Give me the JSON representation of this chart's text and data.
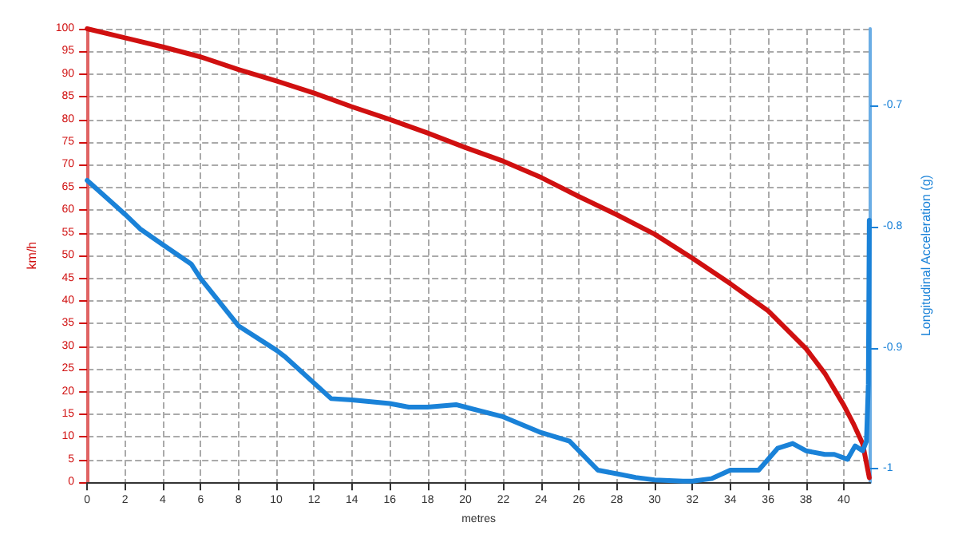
{
  "chart_data": {
    "type": "line",
    "xlabel": "metres",
    "ylabel": "km/h",
    "y2label": "Longitudinal Acceleration (g)",
    "xlim": [
      0,
      41.4
    ],
    "xticks": [
      0,
      2,
      4,
      6,
      8,
      10,
      12,
      14,
      16,
      18,
      20,
      22,
      24,
      26,
      28,
      30,
      32,
      34,
      36,
      38,
      40
    ],
    "ylim": [
      0,
      100
    ],
    "yticks": [
      0,
      5,
      10,
      15,
      20,
      25,
      30,
      35,
      40,
      45,
      50,
      55,
      60,
      65,
      70,
      75,
      80,
      85,
      90,
      95,
      100
    ],
    "y2lim": [
      -1.011,
      -0.637
    ],
    "y2ticks": [
      -1,
      -0.9,
      -0.8,
      -0.7
    ],
    "grid": true,
    "marker": "none",
    "line_style": "solid",
    "series": [
      {
        "color": "#d01010",
        "x": [
          0,
          2,
          4,
          6,
          8,
          10,
          12,
          14,
          16,
          18,
          20,
          22,
          24,
          26,
          28,
          30,
          32,
          34,
          36,
          38,
          39,
          40,
          40.5,
          41,
          41.35
        ],
        "values": [
          100,
          98,
          96,
          93.8,
          91,
          88.5,
          85.8,
          82.8,
          80,
          77,
          73.8,
          70.8,
          67.2,
          63,
          59,
          54.7,
          49.4,
          43.8,
          37.8,
          29.5,
          24,
          17,
          13,
          8.5,
          1
        ]
      },
      {
        "color": "#1a82d8",
        "axis": "y2",
        "x": [
          0,
          2,
          2.8,
          4,
          5.5,
          6,
          8,
          10,
          10.5,
          12.9,
          14,
          16,
          17,
          18,
          19.5,
          20,
          22,
          24,
          25.5,
          27,
          28,
          29,
          30,
          31.5,
          32,
          33,
          34,
          35.5,
          36.5,
          37.3,
          38,
          39,
          39.5,
          40.2,
          40.6,
          41,
          41.2,
          41.3,
          41.35
        ],
        "values": [
          -0.762,
          -0.79,
          -0.802,
          -0.815,
          -0.831,
          -0.843,
          -0.882,
          -0.902,
          -0.908,
          -0.942,
          -0.943,
          -0.946,
          -0.949,
          -0.949,
          -0.947,
          -0.949,
          -0.957,
          -0.97,
          -0.977,
          -1.001,
          -1.004,
          -1.007,
          -1.009,
          -1.01,
          -1.01,
          -1.008,
          -1.001,
          -1.001,
          -0.983,
          -0.979,
          -0.985,
          -0.988,
          -0.988,
          -0.992,
          -0.981,
          -0.985,
          -0.977,
          -0.93,
          -0.795
        ]
      }
    ]
  }
}
